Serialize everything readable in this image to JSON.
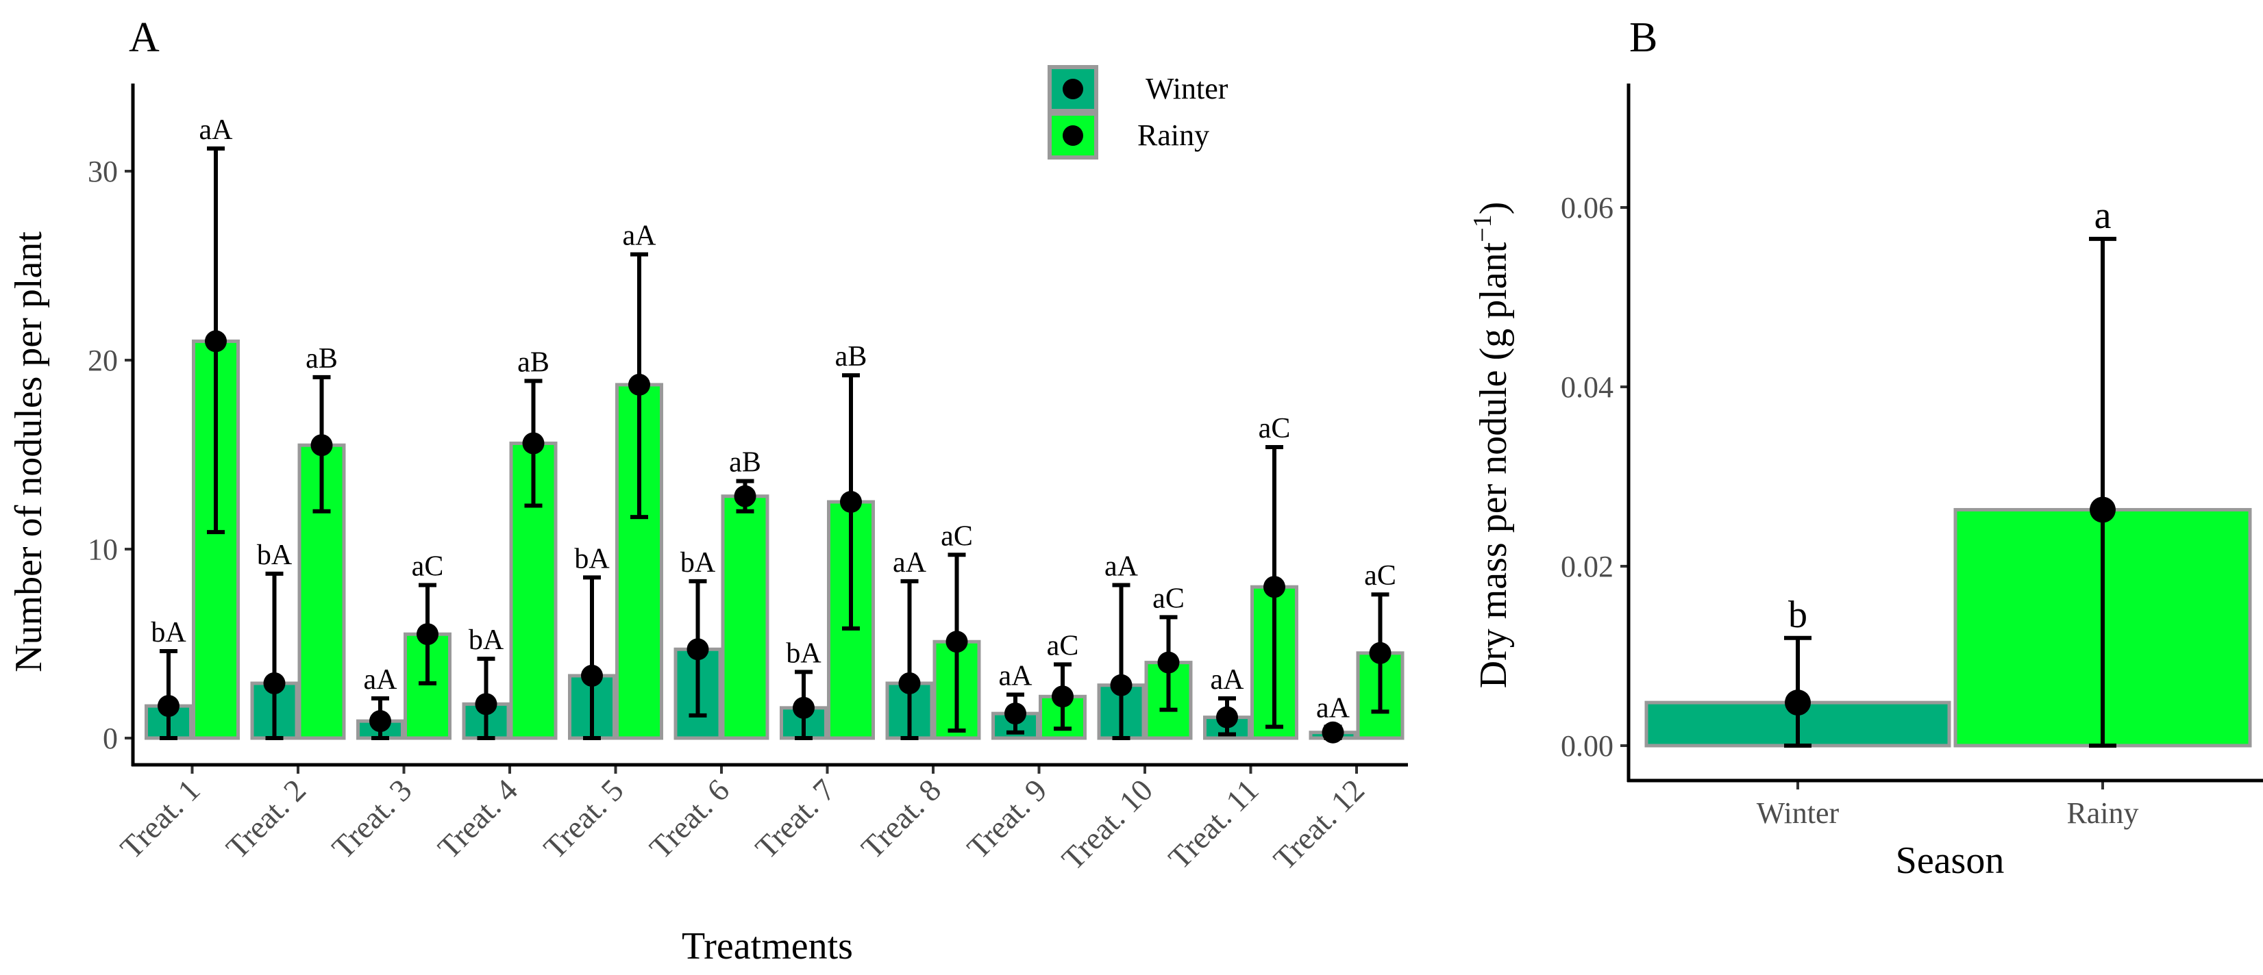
{
  "colors": {
    "winter": "#00AF7A",
    "rainy": "#00FF2A",
    "border": "#999999"
  },
  "chart_data": [
    {
      "panel": "A",
      "type": "bar",
      "xlabel": "Treatments",
      "ylabel": "Number of nodules per plant",
      "ylim": [
        0,
        35
      ],
      "yticks": [
        0,
        10,
        20,
        30
      ],
      "legend": {
        "position": "top-right",
        "entries": [
          "Winter",
          "Rainy"
        ]
      },
      "categories": [
        "Treat. 1",
        "Treat. 2",
        "Treat. 3",
        "Treat. 4",
        "Treat. 5",
        "Treat. 6",
        "Treat. 7",
        "Treat. 8",
        "Treat. 9",
        "Treat. 10",
        "Treat. 11",
        "Treat. 12"
      ],
      "series": [
        {
          "name": "Winter",
          "values": [
            1.7,
            2.9,
            0.9,
            1.8,
            3.3,
            4.7,
            1.6,
            2.9,
            1.3,
            2.8,
            1.1,
            0.3
          ],
          "err_low": [
            0,
            0,
            0,
            0,
            0,
            1.2,
            0,
            0,
            0.3,
            0,
            0.2,
            0
          ],
          "err_high": [
            4.6,
            8.7,
            2.1,
            4.2,
            8.5,
            8.3,
            3.5,
            8.3,
            2.3,
            8.1,
            2.1,
            0.6
          ],
          "labels": [
            "bA",
            "bA",
            "aA",
            "bA",
            "bA",
            "bA",
            "bA",
            "aA",
            "aA",
            "aA",
            "aA",
            "aA"
          ]
        },
        {
          "name": "Rainy",
          "values": [
            21.0,
            15.5,
            5.5,
            15.6,
            18.7,
            12.8,
            12.5,
            5.1,
            2.2,
            4.0,
            8.0,
            4.5
          ],
          "err_low": [
            10.9,
            12.0,
            2.9,
            12.3,
            11.7,
            12.0,
            5.8,
            0.4,
            0.5,
            1.5,
            0.6,
            1.4
          ],
          "err_high": [
            31.2,
            19.1,
            8.1,
            18.9,
            25.6,
            13.6,
            19.2,
            9.7,
            3.9,
            6.4,
            15.4,
            7.6
          ],
          "labels": [
            "aA",
            "aB",
            "aC",
            "aB",
            "aA",
            "aB",
            "aB",
            "aC",
            "aC",
            "aC",
            "aC",
            "aC"
          ]
        }
      ]
    },
    {
      "panel": "B",
      "type": "bar",
      "xlabel": "Season",
      "ylabel": "Dry mass per nodule (g plant",
      "ylabel_sup": "−1",
      "ylabel_end": ")",
      "ylim": [
        0,
        0.073
      ],
      "yticks": [
        "0.00",
        "0.02",
        "0.04",
        "0.06"
      ],
      "categories": [
        "Winter",
        "Rainy"
      ],
      "values": [
        0.0048,
        0.0263
      ],
      "err_low": [
        0,
        0
      ],
      "err_high": [
        0.012,
        0.0565
      ],
      "labels": [
        "b",
        "a"
      ]
    }
  ]
}
